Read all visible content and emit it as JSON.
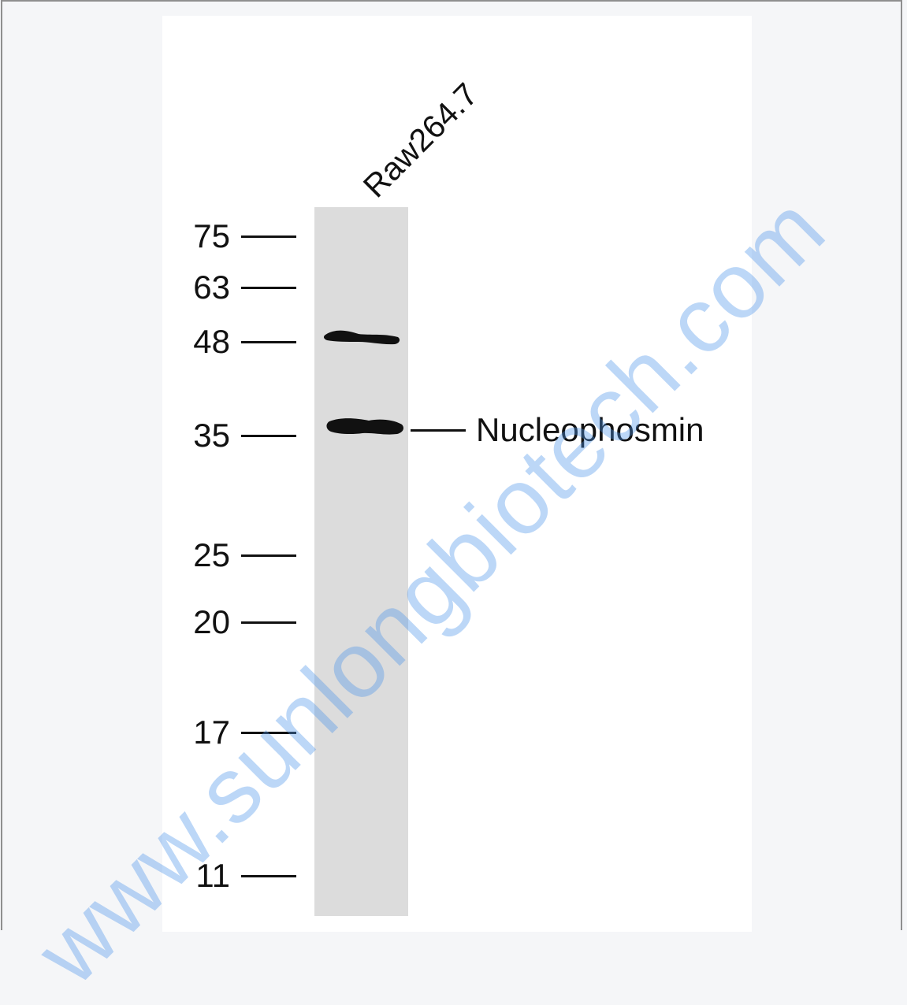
{
  "lane": {
    "label": "Raw264.7"
  },
  "markers": [
    {
      "label": "75"
    },
    {
      "label": "63"
    },
    {
      "label": "48"
    },
    {
      "label": "35"
    },
    {
      "label": "25"
    },
    {
      "label": "20"
    },
    {
      "label": "17"
    },
    {
      "label": "11"
    }
  ],
  "target": {
    "label": "Nucleophosmin"
  },
  "watermark": {
    "text": "www.sunlongbiotech.com"
  },
  "colors": {
    "lane": "#dcdcdc",
    "band": "#111111",
    "watermark": "#5096eb"
  }
}
